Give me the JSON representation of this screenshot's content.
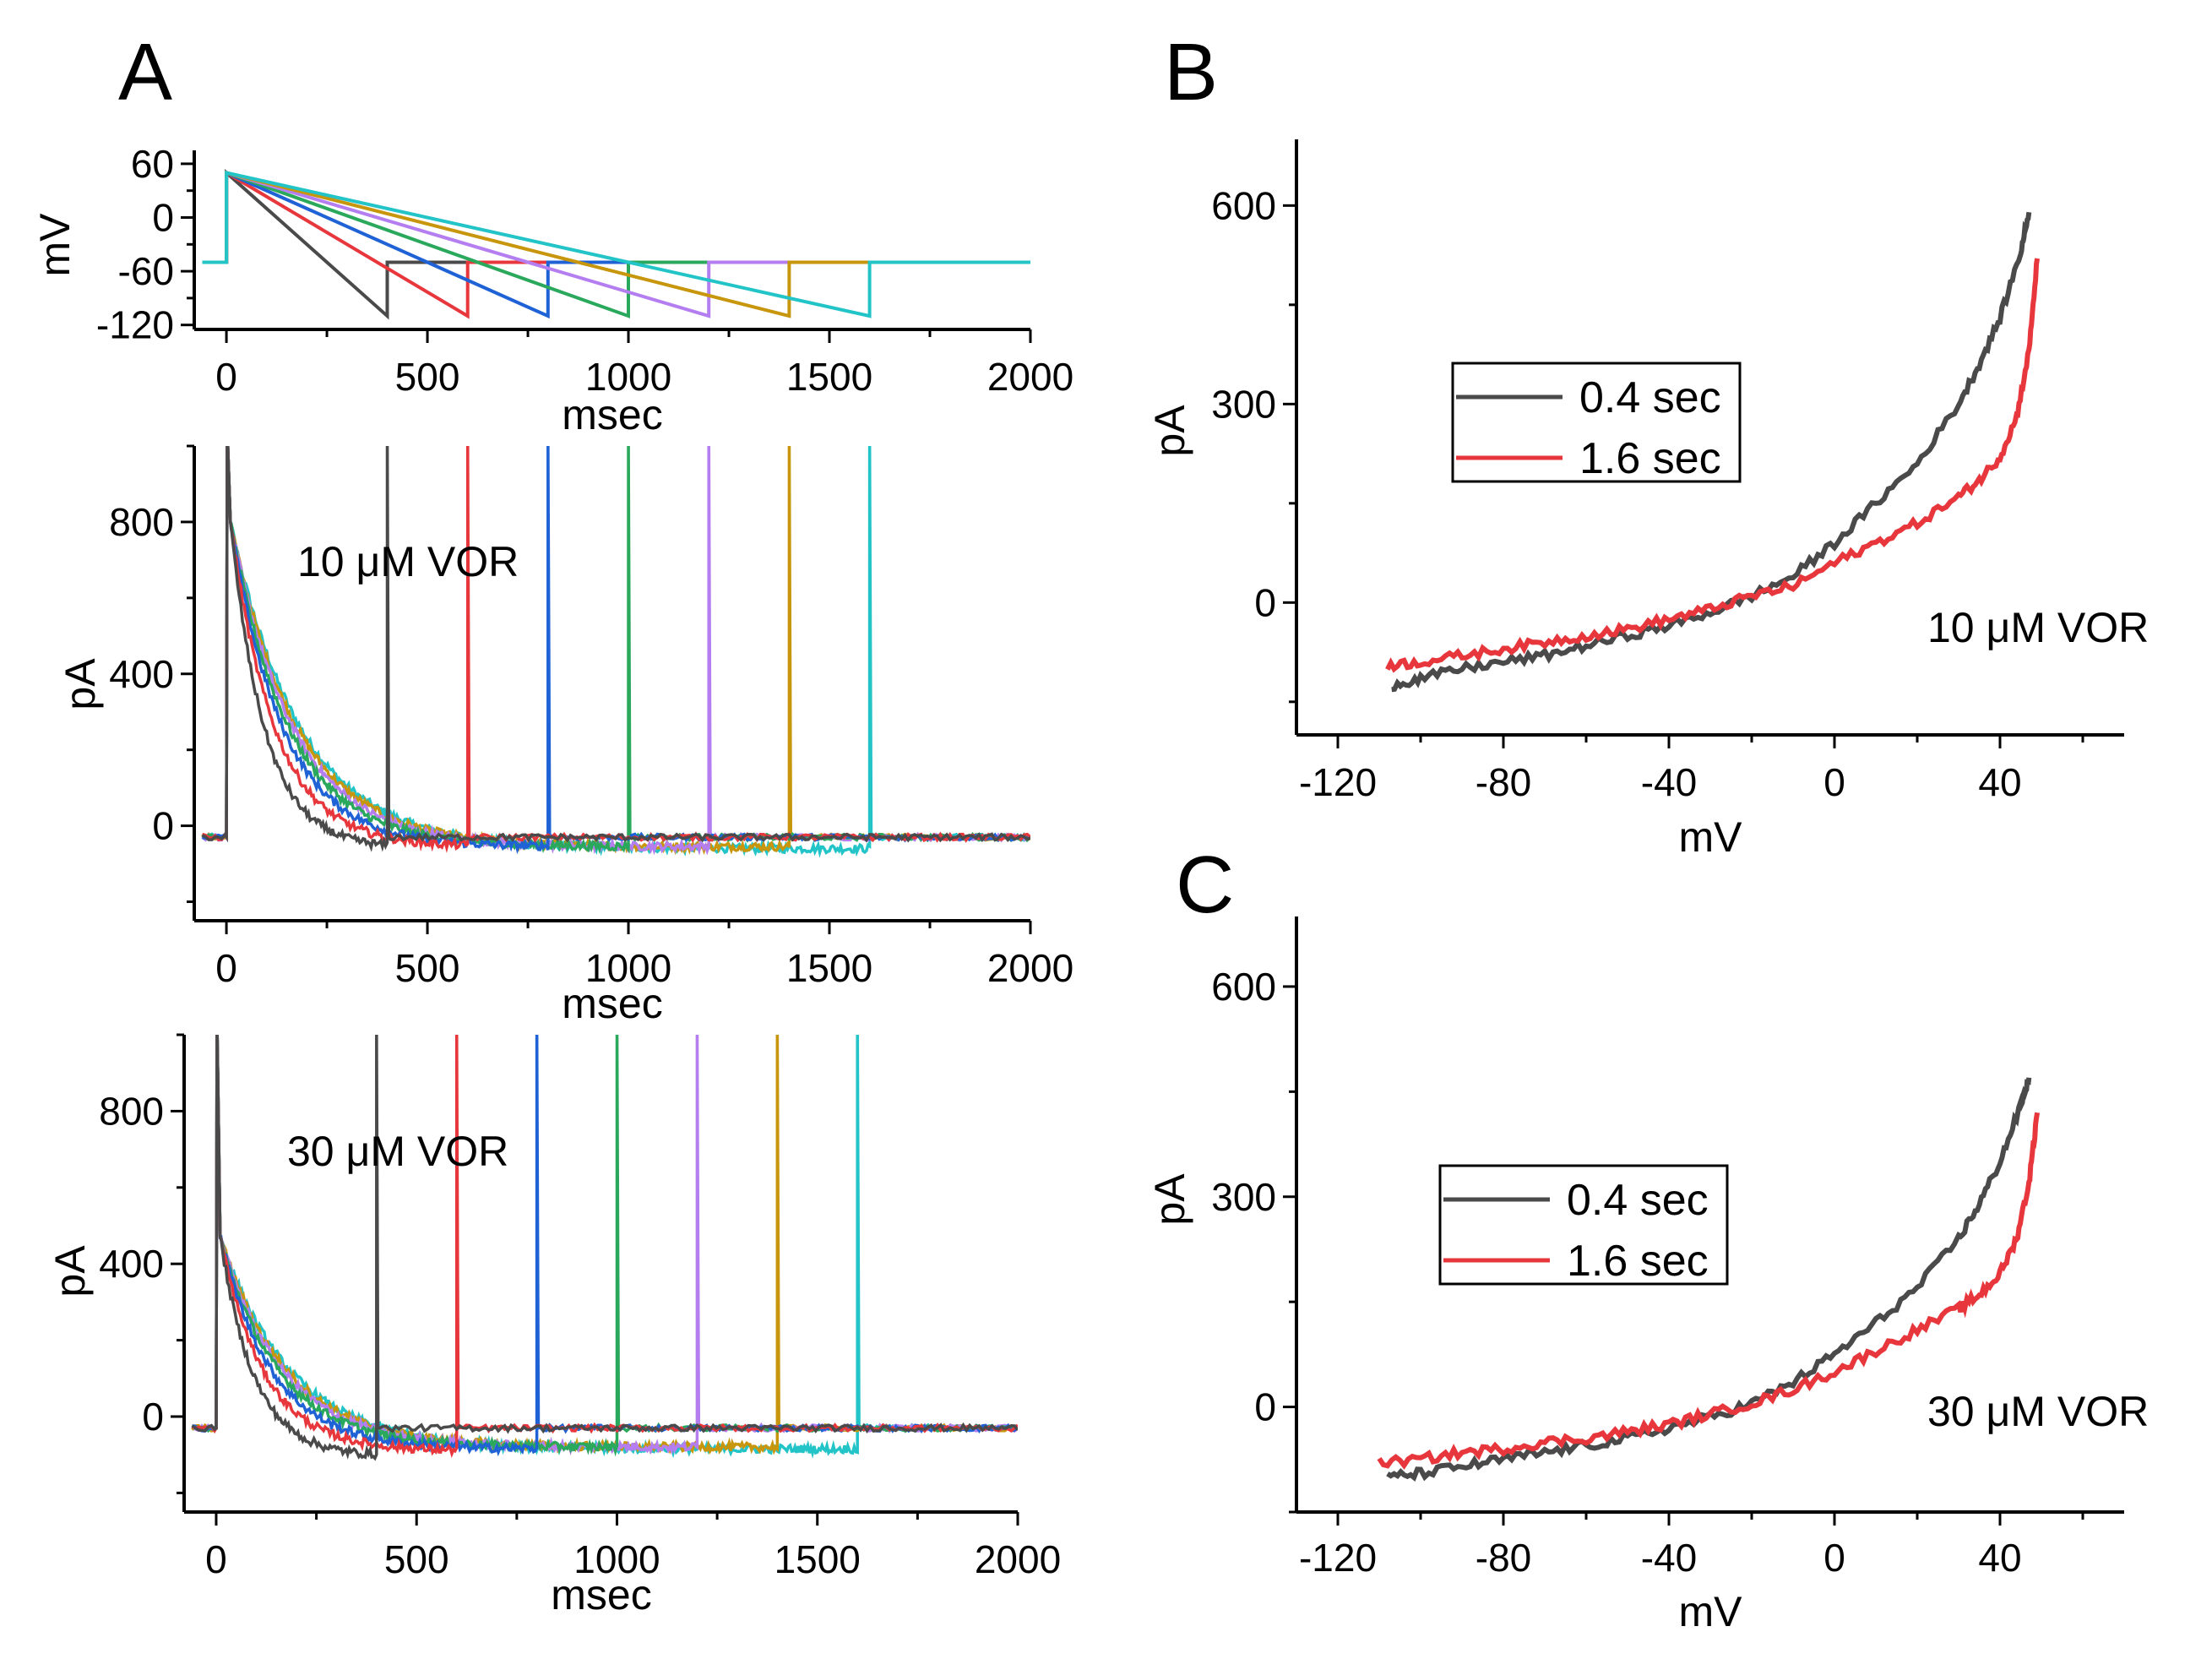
{
  "panel_letters": [
    "A",
    "B",
    "C"
  ],
  "chart_data": [
    {
      "type": "line",
      "panel": "A",
      "id": "a-top",
      "description_label": "Voltage ramp protocol",
      "xlabel": "msec",
      "ylabel": "mV",
      "xlim": [
        -80,
        2000
      ],
      "ylim": [
        -125,
        75
      ],
      "xticks": [
        0,
        500,
        1000,
        1500,
        2000
      ],
      "yticks": [
        60,
        0,
        -60,
        -120
      ],
      "holding_mV": -50,
      "step_mV": 50,
      "ramp_end_mV": -110,
      "series": [
        {
          "name": "0.4 sec",
          "ramp_ms": 400,
          "color": "#4a4a4a"
        },
        {
          "name": "0.6 sec",
          "ramp_ms": 600,
          "color": "#e8373c"
        },
        {
          "name": "0.8 sec",
          "ramp_ms": 800,
          "color": "#1f62d6"
        },
        {
          "name": "1.0 sec",
          "ramp_ms": 1000,
          "color": "#2aa85c"
        },
        {
          "name": "1.2 sec",
          "ramp_ms": 1200,
          "color": "#b47ef0"
        },
        {
          "name": "1.4 sec",
          "ramp_ms": 1400,
          "color": "#c8960c"
        },
        {
          "name": "1.6 sec",
          "ramp_ms": 1600,
          "color": "#22c4c8"
        }
      ]
    },
    {
      "type": "line",
      "panel": "A",
      "id": "a-mid",
      "annotation": "10 μM VOR",
      "xlabel": "msec",
      "ylabel": "pA",
      "xlim": [
        -80,
        2000
      ],
      "ylim": [
        -250,
        1000
      ],
      "xticks": [
        0,
        500,
        1000,
        1500,
        2000
      ],
      "yticks": [
        800,
        400,
        0
      ],
      "baseline_pA": -30,
      "peak_pA": 800,
      "series": [
        {
          "name": "0.4 sec",
          "ramp_ms": 400,
          "end_pA": -60,
          "tau": 85,
          "color": "#4a4a4a"
        },
        {
          "name": "0.6 sec",
          "ramp_ms": 600,
          "end_pA": -55,
          "tau": 110,
          "color": "#e8373c"
        },
        {
          "name": "0.8 sec",
          "ramp_ms": 800,
          "end_pA": -55,
          "tau": 130,
          "color": "#1f62d6"
        },
        {
          "name": "1.0 sec",
          "ramp_ms": 1000,
          "end_pA": -55,
          "tau": 145,
          "color": "#2aa85c"
        },
        {
          "name": "1.2 sec",
          "ramp_ms": 1200,
          "end_pA": -55,
          "tau": 155,
          "color": "#b47ef0"
        },
        {
          "name": "1.4 sec",
          "ramp_ms": 1400,
          "end_pA": -55,
          "tau": 165,
          "color": "#c8960c"
        },
        {
          "name": "1.6 sec",
          "ramp_ms": 1600,
          "end_pA": -60,
          "tau": 175,
          "color": "#22c4c8"
        }
      ]
    },
    {
      "type": "line",
      "panel": "A",
      "id": "a-bot",
      "annotation": "30 μM VOR",
      "xlabel": "msec",
      "ylabel": "pA",
      "xlim": [
        -80,
        2000
      ],
      "ylim": [
        -250,
        1000
      ],
      "xticks": [
        0,
        500,
        1000,
        1500,
        2000
      ],
      "yticks": [
        800,
        400,
        0
      ],
      "baseline_pA": -30,
      "peak_pA": 470,
      "series": [
        {
          "name": "0.4 sec",
          "ramp_ms": 400,
          "end_pA": -105,
          "tau": 85,
          "color": "#4a4a4a"
        },
        {
          "name": "0.6 sec",
          "ramp_ms": 600,
          "end_pA": -90,
          "tau": 110,
          "color": "#e8373c"
        },
        {
          "name": "0.8 sec",
          "ramp_ms": 800,
          "end_pA": -85,
          "tau": 130,
          "color": "#1f62d6"
        },
        {
          "name": "1.0 sec",
          "ramp_ms": 1000,
          "end_pA": -80,
          "tau": 145,
          "color": "#2aa85c"
        },
        {
          "name": "1.2 sec",
          "ramp_ms": 1200,
          "end_pA": -80,
          "tau": 155,
          "color": "#b47ef0"
        },
        {
          "name": "1.4 sec",
          "ramp_ms": 1400,
          "end_pA": -80,
          "tau": 165,
          "color": "#c8960c"
        },
        {
          "name": "1.6 sec",
          "ramp_ms": 1600,
          "end_pA": -85,
          "tau": 175,
          "color": "#22c4c8"
        }
      ]
    },
    {
      "type": "line",
      "panel": "B",
      "id": "b",
      "annotation": "10 μM VOR",
      "xlabel": "mV",
      "ylabel": "pA",
      "xlim": [
        -130,
        70
      ],
      "ylim": [
        -200,
        700
      ],
      "xticks": [
        -120,
        -80,
        -40,
        0,
        40
      ],
      "yticks": [
        600,
        300,
        0
      ],
      "legend_position": "upper-left",
      "series": [
        {
          "name": "0.4 sec",
          "color": "#4a4a4a",
          "x": [
            -107,
            -100,
            -90,
            -80,
            -70,
            -60,
            -50,
            -40,
            -30,
            -20,
            -10,
            0,
            10,
            20,
            30,
            35,
            40,
            45,
            47
          ],
          "y": [
            -125,
            -115,
            -100,
            -90,
            -80,
            -65,
            -50,
            -35,
            -15,
            10,
            40,
            90,
            150,
            210,
            300,
            360,
            430,
            530,
            590
          ]
        },
        {
          "name": "1.6 sec",
          "color": "#e8373c",
          "x": [
            -108,
            -100,
            -90,
            -80,
            -70,
            -60,
            -50,
            -40,
            -30,
            -20,
            -10,
            0,
            10,
            20,
            30,
            35,
            40,
            44,
            47,
            49
          ],
          "y": [
            -95,
            -90,
            -80,
            -70,
            -60,
            -50,
            -40,
            -25,
            -10,
            10,
            25,
            60,
            90,
            120,
            160,
            185,
            220,
            280,
            380,
            520
          ]
        }
      ]
    },
    {
      "type": "line",
      "panel": "C",
      "id": "c",
      "annotation": "30 μM VOR",
      "xlabel": "mV",
      "ylabel": "pA",
      "xlim": [
        -130,
        70
      ],
      "ylim": [
        -150,
        700
      ],
      "xticks": [
        -120,
        -80,
        -40,
        0,
        40
      ],
      "yticks": [
        600,
        300,
        0
      ],
      "legend_position": "upper-left",
      "series": [
        {
          "name": "0.4 sec",
          "color": "#4a4a4a",
          "x": [
            -108,
            -100,
            -90,
            -80,
            -70,
            -60,
            -50,
            -40,
            -30,
            -20,
            -10,
            0,
            10,
            20,
            30,
            35,
            40,
            45,
            47
          ],
          "y": [
            -100,
            -95,
            -85,
            -75,
            -65,
            -55,
            -45,
            -30,
            -15,
            5,
            35,
            75,
            120,
            170,
            240,
            290,
            350,
            430,
            470
          ]
        },
        {
          "name": "1.6 sec",
          "color": "#e8373c",
          "x": [
            -110,
            -100,
            -90,
            -80,
            -70,
            -60,
            -50,
            -40,
            -30,
            -20,
            -10,
            0,
            10,
            20,
            30,
            35,
            40,
            44,
            47,
            49
          ],
          "y": [
            -80,
            -75,
            -65,
            -60,
            -50,
            -45,
            -35,
            -25,
            -10,
            5,
            25,
            50,
            80,
            110,
            140,
            160,
            190,
            240,
            320,
            420
          ]
        }
      ]
    }
  ]
}
